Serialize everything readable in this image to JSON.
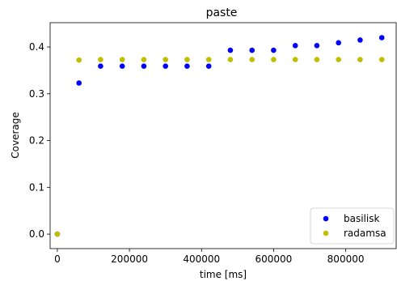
{
  "chart_data": {
    "type": "scatter",
    "title": "paste",
    "xlabel": "time [ms]",
    "ylabel": "Coverage",
    "xlim": [
      -20000,
      940000
    ],
    "ylim": [
      -0.031,
      0.452
    ],
    "x_ticks": [
      0,
      200000,
      400000,
      600000,
      800000
    ],
    "x_tick_labels": [
      "0",
      "200000",
      "400000",
      "600000",
      "800000"
    ],
    "y_ticks": [
      0.0,
      0.1,
      0.2,
      0.3,
      0.4
    ],
    "y_tick_labels": [
      "0.0",
      "0.1",
      "0.2",
      "0.3",
      "0.4"
    ],
    "grid": false,
    "legend_position": "lower right",
    "series": [
      {
        "name": "basilisk",
        "color": "#0000ff",
        "points": [
          [
            0,
            0.0
          ],
          [
            60000,
            0.323
          ],
          [
            120000,
            0.359
          ],
          [
            180000,
            0.359
          ],
          [
            240000,
            0.359
          ],
          [
            300000,
            0.359
          ],
          [
            360000,
            0.359
          ],
          [
            420000,
            0.359
          ],
          [
            480000,
            0.393
          ],
          [
            540000,
            0.393
          ],
          [
            600000,
            0.393
          ],
          [
            660000,
            0.403
          ],
          [
            720000,
            0.403
          ],
          [
            780000,
            0.409
          ],
          [
            840000,
            0.415
          ],
          [
            900000,
            0.42
          ]
        ]
      },
      {
        "name": "radamsa",
        "color": "#bfbf00",
        "points": [
          [
            0,
            0.0
          ],
          [
            60000,
            0.372
          ],
          [
            120000,
            0.373
          ],
          [
            180000,
            0.373
          ],
          [
            240000,
            0.373
          ],
          [
            300000,
            0.373
          ],
          [
            360000,
            0.373
          ],
          [
            420000,
            0.373
          ],
          [
            480000,
            0.373
          ],
          [
            540000,
            0.373
          ],
          [
            600000,
            0.373
          ],
          [
            660000,
            0.373
          ],
          [
            720000,
            0.373
          ],
          [
            780000,
            0.373
          ],
          [
            840000,
            0.373
          ],
          [
            900000,
            0.373
          ]
        ]
      }
    ]
  }
}
